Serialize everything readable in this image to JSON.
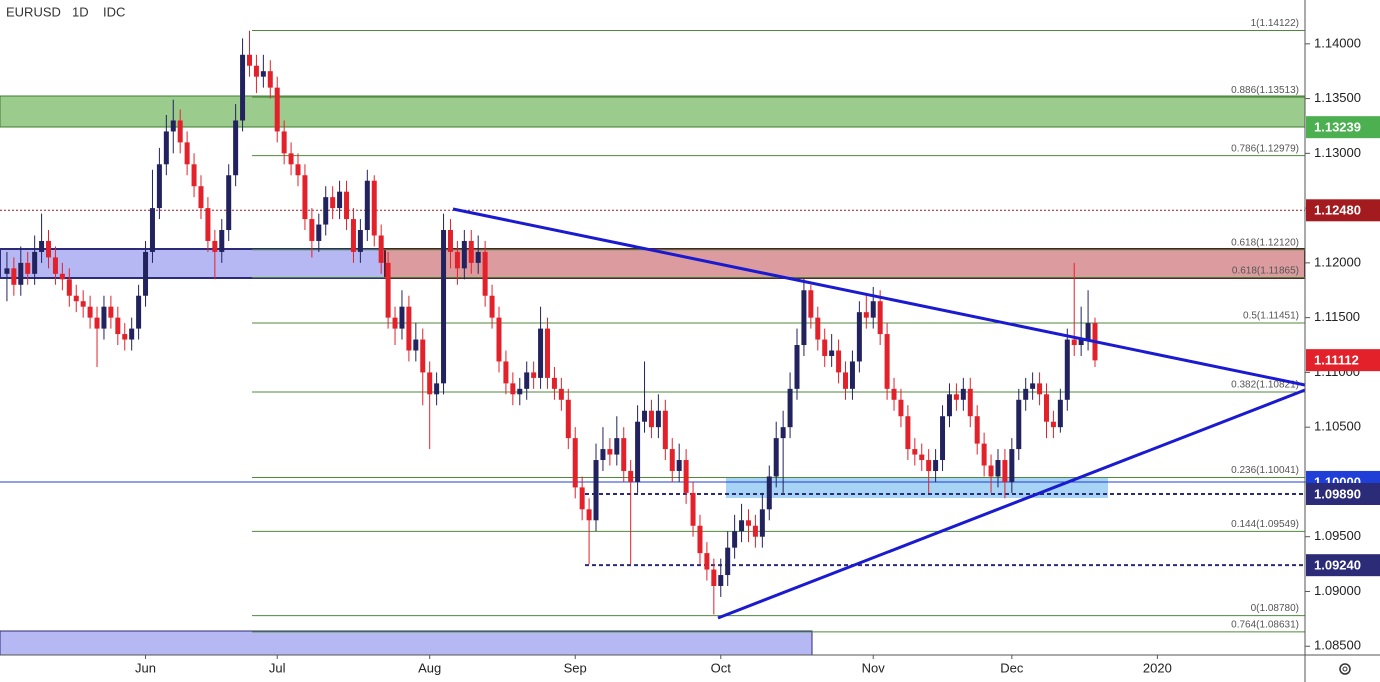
{
  "chart_data": {
    "type": "candlestick",
    "header": [
      "EURUSD",
      "1D",
      "IDC"
    ],
    "up_color": "#22225e",
    "down_color": "#e3212b",
    "grid": false,
    "categories": [
      null,
      null,
      null,
      null,
      null,
      null,
      null,
      null,
      null,
      null,
      null,
      null,
      null,
      null,
      null,
      null,
      null,
      null,
      null,
      null,
      null,
      null,
      null,
      null,
      null,
      null,
      null,
      null,
      null,
      null,
      null,
      null,
      null,
      null,
      null,
      null,
      null,
      null,
      null,
      null,
      null,
      null,
      null,
      null,
      null,
      null,
      null,
      null,
      null,
      null,
      null,
      null,
      null,
      null,
      null,
      null,
      null,
      null,
      null,
      null,
      null,
      null,
      null,
      null,
      null,
      null,
      null,
      null,
      null,
      null,
      null,
      null,
      null,
      null,
      null,
      null,
      null,
      null,
      null,
      null,
      null,
      null,
      null,
      null,
      null,
      null,
      null,
      null,
      null,
      null,
      null,
      null,
      null,
      null,
      null,
      null,
      null,
      null,
      null,
      null,
      null,
      null,
      null,
      null,
      null,
      null,
      null,
      null,
      null,
      null,
      null,
      null,
      null,
      null,
      null,
      null,
      null,
      null,
      null,
      null,
      null,
      null,
      null,
      null,
      null,
      null,
      null,
      null,
      null,
      null,
      null,
      null,
      null,
      null,
      null,
      null,
      null,
      null,
      null,
      null,
      null,
      null,
      null,
      null,
      null,
      null,
      null,
      null,
      null,
      null,
      null,
      null,
      null,
      null,
      null,
      null,
      null,
      null
    ],
    "candles": [
      [
        1.119,
        1.121,
        1.1165,
        1.1195
      ],
      [
        1.1195,
        1.1205,
        1.117,
        1.118
      ],
      [
        1.118,
        1.1215,
        1.117,
        1.12
      ],
      [
        1.12,
        1.121,
        1.118,
        1.119
      ],
      [
        1.119,
        1.1225,
        1.118,
        1.121
      ],
      [
        1.121,
        1.1245,
        1.12,
        1.122
      ],
      [
        1.122,
        1.123,
        1.1195,
        1.1205
      ],
      [
        1.1205,
        1.1215,
        1.118,
        1.119
      ],
      [
        1.119,
        1.12,
        1.1175,
        1.1185
      ],
      [
        1.1185,
        1.1195,
        1.116,
        1.117
      ],
      [
        1.117,
        1.118,
        1.1155,
        1.1165
      ],
      [
        1.1165,
        1.1175,
        1.115,
        1.116
      ],
      [
        1.116,
        1.117,
        1.114,
        1.115
      ],
      [
        1.115,
        1.116,
        1.1105,
        1.114
      ],
      [
        1.114,
        1.117,
        1.113,
        1.116
      ],
      [
        1.116,
        1.117,
        1.114,
        1.115
      ],
      [
        1.115,
        1.116,
        1.1125,
        1.1135
      ],
      [
        1.1135,
        1.1145,
        1.112,
        1.113
      ],
      [
        1.113,
        1.115,
        1.112,
        1.114
      ],
      [
        1.114,
        1.118,
        1.113,
        1.117
      ],
      [
        1.117,
        1.122,
        1.116,
        1.121
      ],
      [
        1.121,
        1.1285,
        1.12,
        1.125
      ],
      [
        1.125,
        1.1305,
        1.124,
        1.129
      ],
      [
        1.129,
        1.1335,
        1.128,
        1.132
      ],
      [
        1.132,
        1.1349,
        1.13,
        1.133
      ],
      [
        1.133,
        1.134,
        1.13,
        1.131
      ],
      [
        1.131,
        1.132,
        1.128,
        1.129
      ],
      [
        1.129,
        1.13,
        1.126,
        1.127
      ],
      [
        1.127,
        1.128,
        1.124,
        1.125
      ],
      [
        1.125,
        1.126,
        1.121,
        1.122
      ],
      [
        1.122,
        1.123,
        1.1185,
        1.121
      ],
      [
        1.121,
        1.124,
        1.12,
        1.123
      ],
      [
        1.123,
        1.129,
        1.122,
        1.128
      ],
      [
        1.128,
        1.1345,
        1.127,
        1.133
      ],
      [
        1.133,
        1.1405,
        1.132,
        1.139
      ],
      [
        1.139,
        1.1412,
        1.137,
        1.138
      ],
      [
        1.138,
        1.139,
        1.1355,
        1.137
      ],
      [
        1.137,
        1.139,
        1.136,
        1.1375
      ],
      [
        1.1375,
        1.1385,
        1.135,
        1.136
      ],
      [
        1.136,
        1.137,
        1.131,
        1.132
      ],
      [
        1.132,
        1.133,
        1.129,
        1.13
      ],
      [
        1.13,
        1.131,
        1.128,
        1.129
      ],
      [
        1.129,
        1.13,
        1.127,
        1.128
      ],
      [
        1.128,
        1.129,
        1.123,
        1.124
      ],
      [
        1.124,
        1.125,
        1.1205,
        1.122
      ],
      [
        1.122,
        1.1245,
        1.121,
        1.1235
      ],
      [
        1.1235,
        1.127,
        1.1225,
        1.126
      ],
      [
        1.126,
        1.127,
        1.124,
        1.125
      ],
      [
        1.125,
        1.1275,
        1.124,
        1.1265
      ],
      [
        1.1265,
        1.1275,
        1.123,
        1.124
      ],
      [
        1.124,
        1.125,
        1.12,
        1.121
      ],
      [
        1.121,
        1.124,
        1.12,
        1.123
      ],
      [
        1.123,
        1.1285,
        1.122,
        1.1275
      ],
      [
        1.1275,
        1.128,
        1.1215,
        1.1225
      ],
      [
        1.1225,
        1.1235,
        1.119,
        1.12
      ],
      [
        1.12,
        1.121,
        1.114,
        1.115
      ],
      [
        1.115,
        1.116,
        1.1125,
        1.114
      ],
      [
        1.114,
        1.1175,
        1.113,
        1.116
      ],
      [
        1.116,
        1.117,
        1.111,
        1.112
      ],
      [
        1.112,
        1.1145,
        1.111,
        1.113
      ],
      [
        1.113,
        1.114,
        1.107,
        1.11
      ],
      [
        1.11,
        1.111,
        1.103,
        1.108
      ],
      [
        1.108,
        1.11,
        1.107,
        1.109
      ],
      [
        1.109,
        1.1245,
        1.108,
        1.123
      ],
      [
        1.123,
        1.124,
        1.1195,
        1.121
      ],
      [
        1.121,
        1.122,
        1.118,
        1.1195
      ],
      [
        1.1195,
        1.123,
        1.1185,
        1.122
      ],
      [
        1.122,
        1.123,
        1.119,
        1.12
      ],
      [
        1.12,
        1.1225,
        1.119,
        1.121
      ],
      [
        1.121,
        1.122,
        1.116,
        1.117
      ],
      [
        1.117,
        1.118,
        1.114,
        1.115
      ],
      [
        1.115,
        1.116,
        1.11,
        1.111
      ],
      [
        1.111,
        1.112,
        1.108,
        1.109
      ],
      [
        1.109,
        1.11,
        1.107,
        1.108
      ],
      [
        1.108,
        1.1095,
        1.107,
        1.1085
      ],
      [
        1.1085,
        1.111,
        1.1075,
        1.11
      ],
      [
        1.11,
        1.111,
        1.1085,
        1.1095
      ],
      [
        1.1095,
        1.116,
        1.1085,
        1.114
      ],
      [
        1.114,
        1.115,
        1.1085,
        1.1095
      ],
      [
        1.1095,
        1.1105,
        1.1075,
        1.1085
      ],
      [
        1.1085,
        1.1095,
        1.1065,
        1.1075
      ],
      [
        1.1075,
        1.1085,
        1.103,
        1.104
      ],
      [
        1.104,
        1.105,
        1.0985,
        1.0995
      ],
      [
        1.0995,
        1.1005,
        1.0965,
        1.0975
      ],
      [
        1.0975,
        1.0985,
        1.0925,
        1.0965
      ],
      [
        1.0965,
        1.1035,
        1.0955,
        1.102
      ],
      [
        1.102,
        1.105,
        1.101,
        1.103
      ],
      [
        1.103,
        1.104,
        1.1015,
        1.1025
      ],
      [
        1.1025,
        1.106,
        1.1015,
        1.104
      ],
      [
        1.104,
        1.105,
        1.1,
        1.101
      ],
      [
        1.101,
        1.102,
        1.0925,
        1.1
      ],
      [
        1.1,
        1.107,
        1.099,
        1.1055
      ],
      [
        1.1055,
        1.111,
        1.1045,
        1.1065
      ],
      [
        1.1065,
        1.1075,
        1.104,
        1.105
      ],
      [
        1.105,
        1.108,
        1.104,
        1.1065
      ],
      [
        1.1065,
        1.1075,
        1.102,
        1.103
      ],
      [
        1.103,
        1.104,
        1.1,
        1.101
      ],
      [
        1.101,
        1.1035,
        1.1,
        1.102
      ],
      [
        1.102,
        1.103,
        1.098,
        1.099
      ],
      [
        1.099,
        1.1,
        1.095,
        1.096
      ],
      [
        1.096,
        1.097,
        1.0925,
        1.0935
      ],
      [
        1.0935,
        1.0945,
        1.091,
        1.092
      ],
      [
        1.092,
        1.093,
        1.0879,
        1.0905
      ],
      [
        1.0905,
        1.093,
        1.0895,
        1.0915
      ],
      [
        1.0915,
        1.0955,
        1.0905,
        1.094
      ],
      [
        1.094,
        1.097,
        1.093,
        1.0955
      ],
      [
        1.0955,
        1.098,
        1.0945,
        1.0965
      ],
      [
        1.0965,
        1.0975,
        1.0945,
        1.096
      ],
      [
        1.096,
        1.097,
        1.094,
        1.095
      ],
      [
        1.095,
        1.099,
        1.094,
        1.0975
      ],
      [
        1.0975,
        1.1015,
        1.0965,
        1.1005
      ],
      [
        1.1005,
        1.1055,
        1.0995,
        1.104
      ],
      [
        1.104,
        1.1065,
        1.099,
        1.105
      ],
      [
        1.105,
        1.11,
        1.104,
        1.1085
      ],
      [
        1.1085,
        1.114,
        1.1075,
        1.1125
      ],
      [
        1.1125,
        1.1186,
        1.1115,
        1.1175
      ],
      [
        1.1175,
        1.118,
        1.114,
        1.115
      ],
      [
        1.115,
        1.116,
        1.112,
        1.113
      ],
      [
        1.113,
        1.114,
        1.1105,
        1.1115
      ],
      [
        1.1115,
        1.1135,
        1.1105,
        1.112
      ],
      [
        1.112,
        1.113,
        1.109,
        1.11
      ],
      [
        1.11,
        1.111,
        1.1075,
        1.1085
      ],
      [
        1.1085,
        1.112,
        1.1075,
        1.111
      ],
      [
        1.111,
        1.1165,
        1.11,
        1.1155
      ],
      [
        1.1155,
        1.117,
        1.114,
        1.115
      ],
      [
        1.115,
        1.1178,
        1.114,
        1.1165
      ],
      [
        1.1165,
        1.1175,
        1.1125,
        1.1135
      ],
      [
        1.1135,
        1.1145,
        1.1075,
        1.1085
      ],
      [
        1.1085,
        1.1095,
        1.1065,
        1.1075
      ],
      [
        1.1075,
        1.1085,
        1.105,
        1.106
      ],
      [
        1.106,
        1.107,
        1.102,
        1.103
      ],
      [
        1.103,
        1.104,
        1.1015,
        1.1025
      ],
      [
        1.1025,
        1.1035,
        1.101,
        1.102
      ],
      [
        1.102,
        1.103,
        1.099,
        1.101
      ],
      [
        1.101,
        1.103,
        1.1,
        1.102
      ],
      [
        1.102,
        1.107,
        1.101,
        1.106
      ],
      [
        1.106,
        1.109,
        1.105,
        1.108
      ],
      [
        1.108,
        1.109,
        1.1065,
        1.1075
      ],
      [
        1.1075,
        1.1095,
        1.1065,
        1.1085
      ],
      [
        1.1085,
        1.1095,
        1.105,
        1.106
      ],
      [
        1.106,
        1.107,
        1.1025,
        1.1035
      ],
      [
        1.1035,
        1.1045,
        1.1005,
        1.1015
      ],
      [
        1.1015,
        1.1025,
        1.099,
        1.1005
      ],
      [
        1.1005,
        1.103,
        1.0995,
        1.102
      ],
      [
        1.102,
        1.103,
        1.0985,
        1.1
      ],
      [
        1.1,
        1.104,
        1.099,
        1.103
      ],
      [
        1.103,
        1.1085,
        1.102,
        1.1075
      ],
      [
        1.1075,
        1.1095,
        1.1065,
        1.1085
      ],
      [
        1.1085,
        1.11,
        1.1075,
        1.109
      ],
      [
        1.109,
        1.11,
        1.107,
        1.108
      ],
      [
        1.108,
        1.109,
        1.104,
        1.1055
      ],
      [
        1.1055,
        1.1065,
        1.104,
        1.105
      ],
      [
        1.105,
        1.1085,
        1.1045,
        1.1075
      ],
      [
        1.1075,
        1.114,
        1.1065,
        1.113
      ],
      [
        1.113,
        1.12,
        1.1115,
        1.1125
      ],
      [
        1.1125,
        1.116,
        1.1115,
        1.113
      ],
      [
        1.113,
        1.1175,
        1.112,
        1.1145
      ],
      [
        1.1145,
        1.115,
        1.1105,
        1.1111
      ]
    ],
    "xlim": [
      -1,
      187.3
    ],
    "xticks": [
      {
        "value": 20,
        "label": "Jun"
      },
      {
        "value": 39,
        "label": "Jul"
      },
      {
        "value": 61,
        "label": "Aug"
      },
      {
        "value": 82,
        "label": "Sep"
      },
      {
        "value": 103,
        "label": "Oct"
      },
      {
        "value": 125,
        "label": "Nov"
      },
      {
        "value": 145,
        "label": "Dec"
      },
      {
        "value": 166,
        "label": "2020"
      }
    ],
    "ylim": [
      1.0842,
      1.144
    ],
    "yticks": [
      {
        "value": 1.14,
        "label": "1.14000"
      },
      {
        "value": 1.135,
        "label": "1.13500"
      },
      {
        "value": 1.13,
        "label": "1.13000"
      },
      {
        "value": 1.125,
        "label": "1.12500"
      },
      {
        "value": 1.12,
        "label": "1.12000"
      },
      {
        "value": 1.115,
        "label": "1.11500"
      },
      {
        "value": 1.11,
        "label": "1.11000"
      },
      {
        "value": 1.105,
        "label": "1.10500"
      },
      {
        "value": 1.1,
        "label": "1.10000"
      },
      {
        "value": 1.095,
        "label": "1.09500"
      },
      {
        "value": 1.09,
        "label": "1.09000"
      },
      {
        "value": 1.085,
        "label": "1.08500"
      }
    ],
    "fib_color": "#4f8a3c",
    "fib_levels": [
      {
        "value": 1.14122,
        "label": "1(1.14122)"
      },
      {
        "value": 1.13513,
        "label": "0.886(1.13513)"
      },
      {
        "value": 1.12979,
        "label": "0.786(1.12979)"
      },
      {
        "value": 1.1212,
        "label": "0.618(1.12120)"
      },
      {
        "value": 1.11865,
        "label": "0.618(1.11865)"
      },
      {
        "value": 1.11451,
        "label": "0.5(1.11451)"
      },
      {
        "value": 1.10821,
        "label": "0.382(1.10821)"
      },
      {
        "value": 1.10041,
        "label": "0.236(1.10041)"
      },
      {
        "value": 1.09549,
        "label": "0.144(1.09549)"
      },
      {
        "value": 1.0878,
        "label": "0(1.08780)"
      },
      {
        "value": 1.08631,
        "label": "0.764(1.08631)"
      }
    ],
    "price_tags": [
      {
        "value": 1.13239,
        "label": "1.13239",
        "color": "#4caf50",
        "line": "none"
      },
      {
        "value": 1.1248,
        "label": "1.12480",
        "color": "#a31b1f",
        "line": "dotted"
      },
      {
        "value": 1.11112,
        "label": "1.11112",
        "color": "#e3212b",
        "line": "none"
      },
      {
        "value": 1.1,
        "label": "1.10000",
        "color": "#1f3fd6",
        "line": "solid"
      },
      {
        "value": 1.0989,
        "label": "1.09890",
        "color": "#2b2b78",
        "line": "dashed"
      },
      {
        "value": 1.0924,
        "label": "1.09240",
        "color": "#2b2b78",
        "line": "dashed"
      }
    ]
  }
}
